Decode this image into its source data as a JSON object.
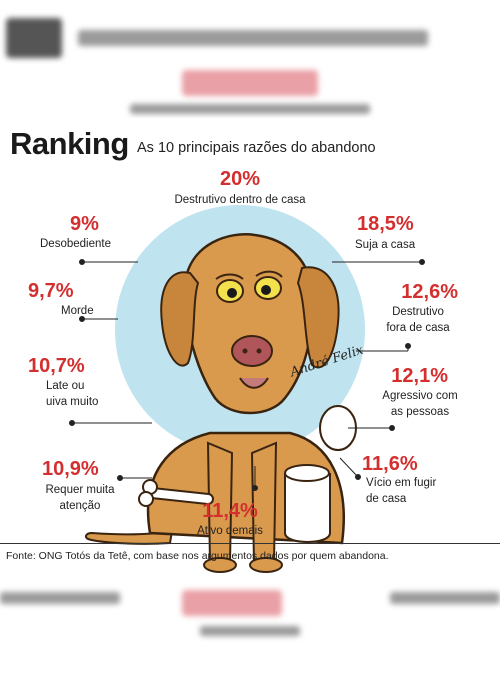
{
  "chart_data": {
    "type": "table",
    "title": "Ranking",
    "subtitle": "As 10 principais razões do abandono",
    "unit": "%",
    "items": [
      {
        "label": "Destrutivo dentro de casa",
        "value": 20,
        "display": "20%"
      },
      {
        "label": "Suja a casa",
        "value": 18.5,
        "display": "18,5%"
      },
      {
        "label": "Destrutivo fora de casa",
        "value": 12.6,
        "display": "12,6%"
      },
      {
        "label": "Agressivo com as pessoas",
        "value": 12.1,
        "display": "12,1%"
      },
      {
        "label": "Vício em fugir de casa",
        "value": 11.6,
        "display": "11,6%"
      },
      {
        "label": "Ativo demais",
        "value": 11.4,
        "display": "11,4%"
      },
      {
        "label": "Requer muita atenção",
        "value": 10.9,
        "display": "10,9%"
      },
      {
        "label": "Late ou uiva muito",
        "value": 10.7,
        "display": "10,7%"
      },
      {
        "label": "Morde",
        "value": 9.7,
        "display": "9,7%"
      },
      {
        "label": "Desobediente",
        "value": 9,
        "display": "9%"
      }
    ],
    "source": "Fonte: ONG Totós da Tetê, com base nos argumentos dados por quem abandona."
  },
  "labels": {
    "destrutivo_dentro": "Destrutivo dentro de casa",
    "suja": "Suja a casa",
    "destrutivo_fora": "Destrutivo\nfora de casa",
    "agressivo": "Agressivo com\nas pessoas",
    "vicio": "Vício em fugir\nde casa",
    "ativo": "Ativo demais",
    "requer": "Requer muita\natenção",
    "late": "Late ou\nuiva muito",
    "morde": "Morde",
    "desobediente": "Desobediente"
  },
  "signature": "André Felix",
  "colors": {
    "accent": "#d32f2f",
    "circle": "#bfe4f0",
    "dog_fur": "#d99a4e",
    "dog_outline": "#3a2410"
  },
  "illustration": "sad-dog-cartoon"
}
